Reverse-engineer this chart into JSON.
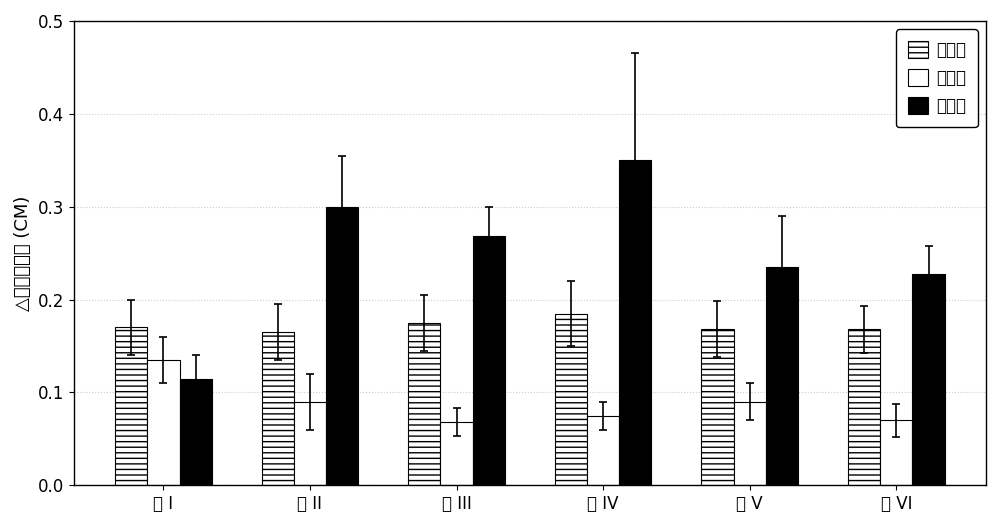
{
  "groups": [
    "组 I",
    "组 II",
    "组 III",
    "组 IV",
    "组 V",
    "组 VI"
  ],
  "series": {
    "空白组": {
      "values": [
        0.17,
        0.165,
        0.175,
        0.185,
        0.168,
        0.168
      ],
      "errors": [
        0.03,
        0.03,
        0.03,
        0.035,
        0.03,
        0.025
      ],
      "hatch": "---",
      "facecolor": "#ffffff",
      "edgecolor": "#000000"
    },
    "对照组": {
      "values": [
        0.135,
        0.09,
        0.068,
        0.075,
        0.09,
        0.07
      ],
      "errors": [
        0.025,
        0.03,
        0.015,
        0.015,
        0.02,
        0.018
      ],
      "hatch": "",
      "facecolor": "#ffffff",
      "edgecolor": "#000000"
    },
    "实验组": {
      "values": [
        0.115,
        0.3,
        0.268,
        0.35,
        0.235,
        0.228
      ],
      "errors": [
        0.025,
        0.055,
        0.032,
        0.115,
        0.055,
        0.03
      ],
      "hatch": "",
      "facecolor": "#000000",
      "edgecolor": "#000000"
    }
  },
  "ylabel": "△不定根根长 (CM)",
  "ylim": [
    0,
    0.5
  ],
  "yticks": [
    0,
    0.1,
    0.2,
    0.3,
    0.4,
    0.5
  ],
  "legend_labels": [
    "空白组",
    "对照组",
    "实验组"
  ],
  "bar_width": 0.22,
  "background_color": "#ffffff",
  "grid_color": "#cccccc",
  "label_fontsize": 13,
  "tick_fontsize": 12,
  "legend_fontsize": 12
}
